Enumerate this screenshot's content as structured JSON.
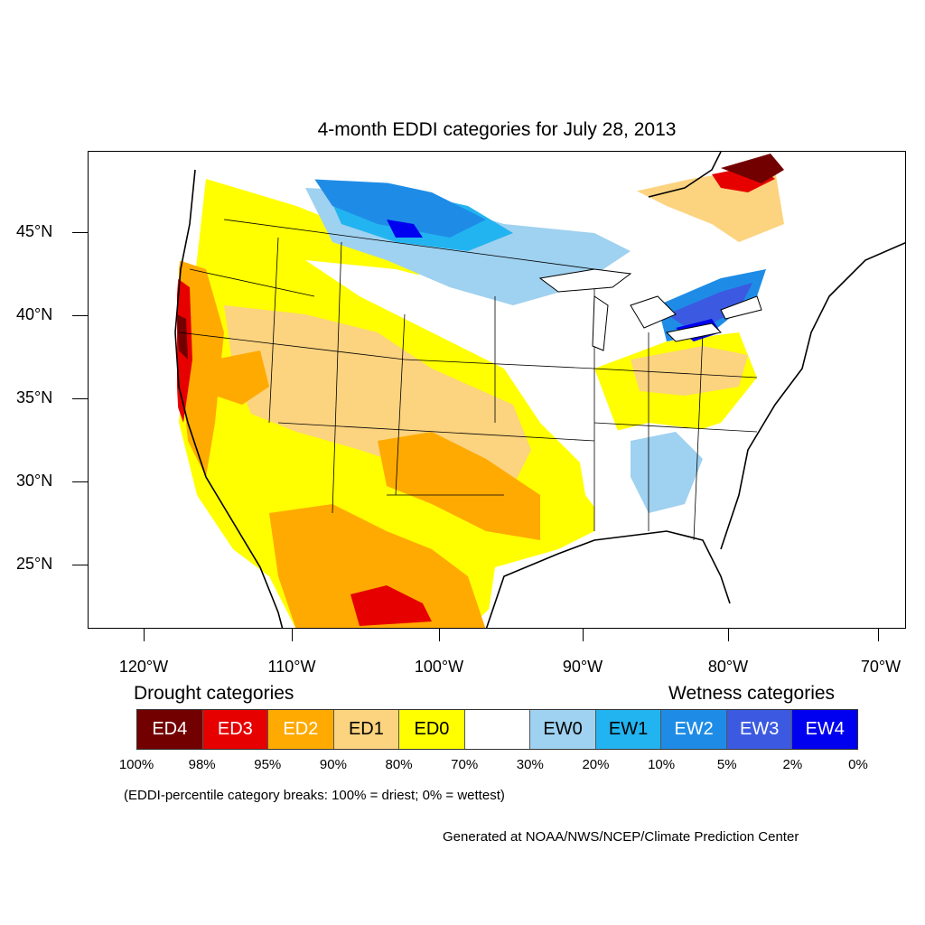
{
  "title": "4-month EDDI categories for July 28, 2013",
  "map": {
    "lat_labels": [
      "45°N",
      "40°N",
      "35°N",
      "30°N",
      "25°N"
    ],
    "lon_labels": [
      "120°W",
      "110°W",
      "100°W",
      "90°W",
      "80°W",
      "70°W"
    ]
  },
  "legend": {
    "drought_title": "Drought categories",
    "wetness_title": "Wetness categories",
    "categories": [
      {
        "label": "ED4",
        "color": "#730000",
        "text_color": "#ffffff"
      },
      {
        "label": "ED3",
        "color": "#e60000",
        "text_color": "#ffffff"
      },
      {
        "label": "ED2",
        "color": "#ffaa00",
        "text_color": "#ffffff"
      },
      {
        "label": "ED1",
        "color": "#fcd37f",
        "text_color": "#000000"
      },
      {
        "label": "ED0",
        "color": "#ffff00",
        "text_color": "#000000"
      },
      {
        "label": "",
        "color": "#ffffff",
        "text_color": "#000000"
      },
      {
        "label": "EW0",
        "color": "#9fd1f0",
        "text_color": "#000000"
      },
      {
        "label": "EW1",
        "color": "#22b4f0",
        "text_color": "#000000"
      },
      {
        "label": "EW2",
        "color": "#1e8ce6",
        "text_color": "#ffffff"
      },
      {
        "label": "EW3",
        "color": "#3c5ae1",
        "text_color": "#ffffff"
      },
      {
        "label": "EW4",
        "color": "#0000f0",
        "text_color": "#ffffff"
      }
    ],
    "breaks": [
      "100%",
      "98%",
      "95%",
      "90%",
      "80%",
      "70%",
      "30%",
      "20%",
      "10%",
      "5%",
      "2%",
      "0%"
    ]
  },
  "note": "(EDDI-percentile category breaks: 100% = driest; 0% = wettest)",
  "credit": "Generated at NOAA/NWS/NCEP/Climate Prediction Center"
}
